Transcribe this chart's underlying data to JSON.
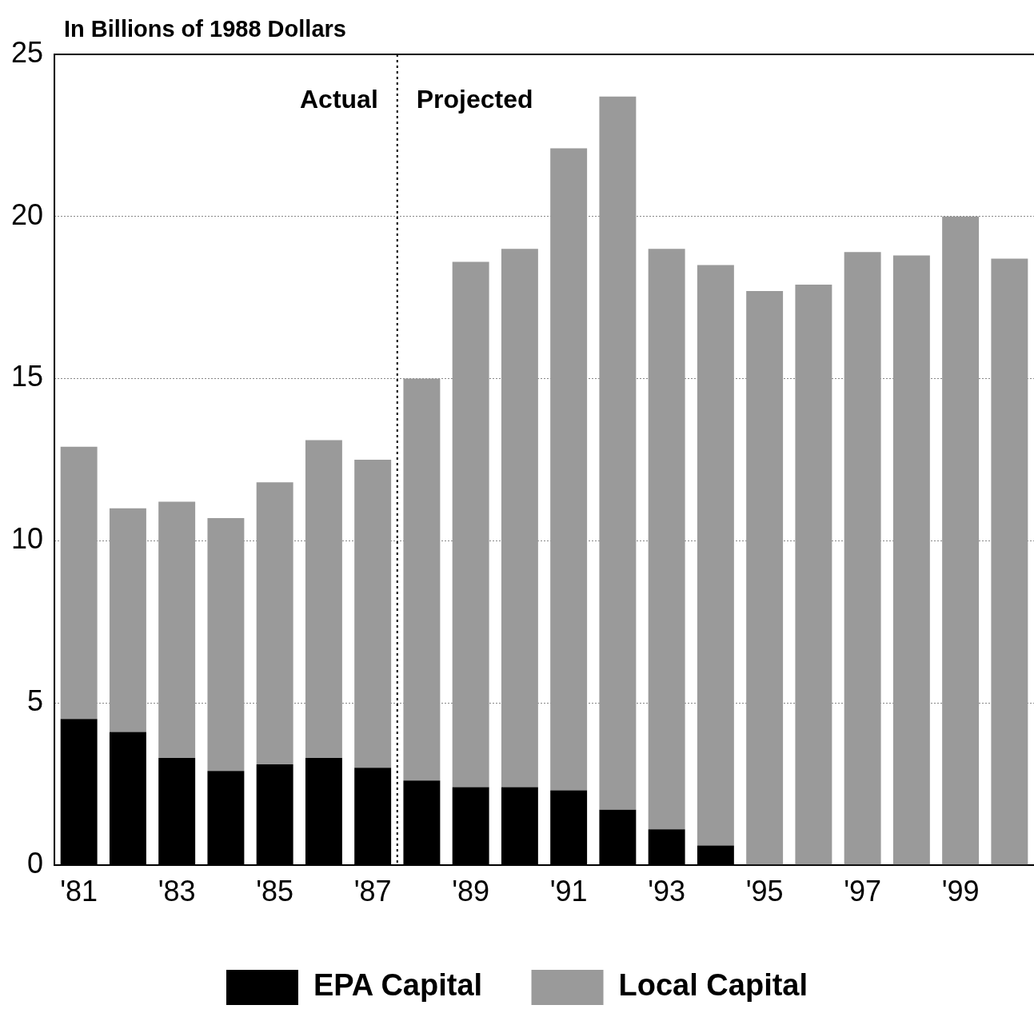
{
  "chart_data": {
    "type": "bar",
    "stacked": true,
    "ylabel": "In Billions of 1988 Dollars",
    "x": [
      1981,
      1982,
      1983,
      1984,
      1985,
      1986,
      1987,
      1988,
      1989,
      1990,
      1991,
      1992,
      1993,
      1994,
      1995,
      1996,
      1997,
      1998,
      1999,
      2000
    ],
    "series": [
      {
        "name": "EPA Capital",
        "color": "#000000",
        "values": [
          4.5,
          4.1,
          3.3,
          2.9,
          3.1,
          3.3,
          3.0,
          2.6,
          2.4,
          2.4,
          2.3,
          1.7,
          1.1,
          0.6,
          0,
          0,
          0,
          0,
          0,
          0
        ]
      },
      {
        "name": "Local Capital",
        "color": "#9a9a9a",
        "values": [
          8.4,
          6.9,
          7.9,
          7.8,
          8.7,
          9.8,
          9.5,
          12.4,
          16.2,
          16.6,
          19.8,
          22.0,
          17.9,
          17.9,
          17.7,
          17.9,
          18.9,
          18.8,
          20.0,
          18.7
        ]
      }
    ],
    "xlim": [
      1980.5,
      2000.5
    ],
    "xticks": [
      {
        "value": 1981,
        "label": "'81"
      },
      {
        "value": 1983,
        "label": "'83"
      },
      {
        "value": 1985,
        "label": "'85"
      },
      {
        "value": 1987,
        "label": "'87"
      },
      {
        "value": 1989,
        "label": "'89"
      },
      {
        "value": 1991,
        "label": "'91"
      },
      {
        "value": 1993,
        "label": "'93"
      },
      {
        "value": 1995,
        "label": "'95"
      },
      {
        "value": 1997,
        "label": "'97"
      },
      {
        "value": 1999,
        "label": "'99"
      }
    ],
    "ylim": [
      0,
      25
    ],
    "yticks": [
      0,
      5,
      10,
      15,
      20,
      25
    ],
    "ref_lines": [
      {
        "axis": "x",
        "value": 1987.5,
        "line_style": "dotted",
        "color": "#000000"
      }
    ],
    "annotations": [
      "Actual",
      "Projected"
    ],
    "grid": "y",
    "legend": "bottom"
  }
}
